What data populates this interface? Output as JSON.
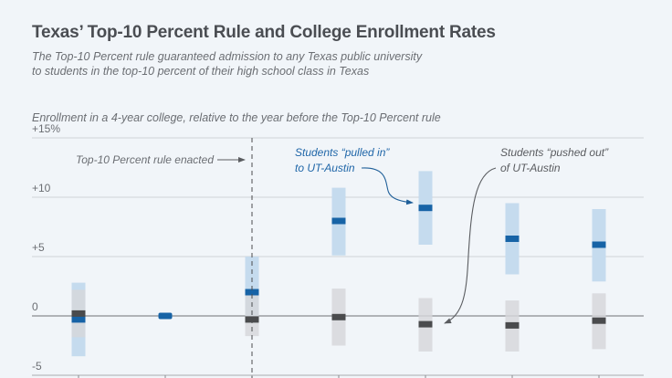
{
  "header": {
    "title": "Texas’ Top-10 Percent Rule and College Enrollment Rates",
    "subtitle_line1": "The Top-10 Percent rule guaranteed admission to any Texas public university",
    "subtitle_line2": "to students in the top-10 percent of their high school class in Texas"
  },
  "chart_data": {
    "type": "scatter",
    "title": "Texas’ Top-10 Percent Rule and College Enrollment Rates",
    "ylabel": "Enrollment in a 4-year college, relative to the year before the Top-10 Percent rule",
    "xlabel": "",
    "ylim": [
      -5,
      15
    ],
    "yticks": [
      {
        "value": 15,
        "label": "+15%"
      },
      {
        "value": 10,
        "label": "+10"
      },
      {
        "value": 5,
        "label": "+5"
      },
      {
        "value": 0,
        "label": "0"
      },
      {
        "value": -5,
        "label": "-5"
      }
    ],
    "grid": true,
    "x_positions": 7,
    "reference_index": 1,
    "rule_enacted_index": 2,
    "series": [
      {
        "name": "Students pulled in to UT-Austin",
        "color": "#1763a6",
        "ci_color": "#c5dbee",
        "means": [
          -0.3,
          0,
          2.0,
          8.0,
          9.1,
          6.5,
          6.0
        ],
        "ci_low": [
          -3.4,
          null,
          -0.5,
          5.1,
          6.0,
          3.5,
          2.9
        ],
        "ci_high": [
          2.8,
          null,
          5.0,
          10.8,
          12.2,
          9.5,
          9.0
        ]
      },
      {
        "name": "Students pushed out of UT-Austin",
        "color": "#4a4b4d",
        "ci_color": "#d6d7da",
        "means": [
          0.2,
          null,
          -0.3,
          -0.1,
          -0.7,
          -0.8,
          -0.4
        ],
        "ci_low": [
          -1.8,
          null,
          -1.7,
          -2.5,
          -3.0,
          -3.0,
          -2.8
        ],
        "ci_high": [
          2.2,
          null,
          1.8,
          2.3,
          1.5,
          1.3,
          1.9
        ]
      }
    ],
    "annotations": {
      "rule": "Top-10 Percent rule enacted",
      "pulled_in_line1": "Students “pulled in”",
      "pulled_in_line2": "to UT-Austin",
      "pushed_out_line1": "Students “pushed out”",
      "pushed_out_line2": "of UT-Austin"
    }
  }
}
